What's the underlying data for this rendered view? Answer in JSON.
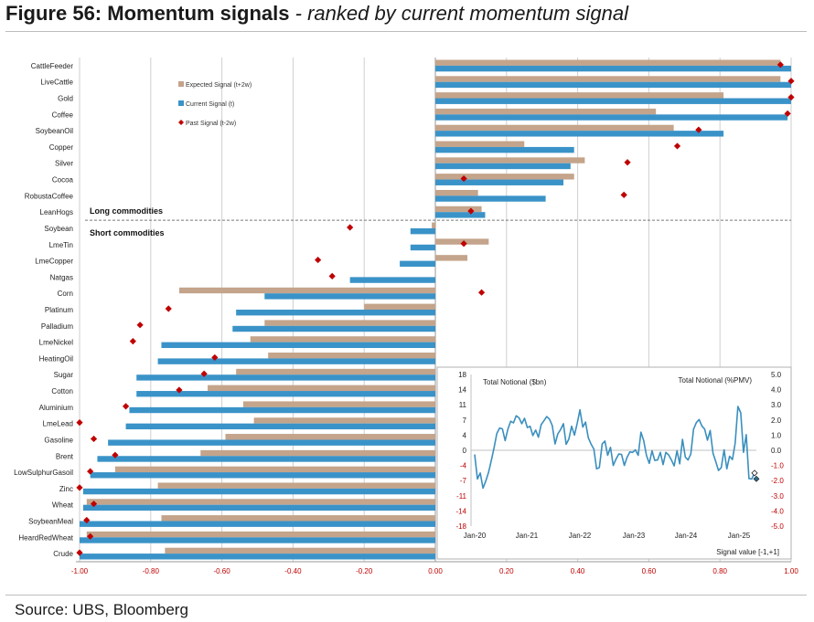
{
  "figure": {
    "number_label": "Figure 56: Momentum signals",
    "subtitle": "- ranked by current momentum signal",
    "source": "Source: UBS, Bloomberg"
  },
  "colors": {
    "expected": "#c4a48b",
    "current": "#3a93c8",
    "past": "#c00000",
    "grid": "#cfcfcf",
    "axis_red": "#c00000",
    "inset_line": "#3a8fbf"
  },
  "chart_data": [
    {
      "type": "bar",
      "orientation": "horizontal",
      "categories": [
        "CattleFeeder",
        "LiveCattle",
        "Gold",
        "Coffee",
        "SoybeanOil",
        "Copper",
        "Silver",
        "Cocoa",
        "RobustaCoffee",
        "LeanHogs",
        "Soybean",
        "LmeTin",
        "LmeCopper",
        "Natgas",
        "Corn",
        "Platinum",
        "Palladium",
        "LmeNickel",
        "HeatingOil",
        "Sugar",
        "Cotton",
        "Aluminium",
        "LmeLead",
        "Gasoline",
        "Brent",
        "LowSulphurGasoil",
        "Zinc",
        "Wheat",
        "SoybeanMeal",
        "HeardRedWheat",
        "Crude"
      ],
      "series": [
        {
          "name": "Expected Signal (t+2w)",
          "marker": "bar",
          "values": [
            0.97,
            0.97,
            0.81,
            0.62,
            0.67,
            0.25,
            0.42,
            0.39,
            0.12,
            0.13,
            -0.01,
            0.15,
            0.09,
            0,
            -0.72,
            -0.2,
            -0.48,
            -0.52,
            -0.47,
            -0.56,
            -0.64,
            -0.54,
            -0.51,
            -0.59,
            -0.66,
            -0.9,
            -0.78,
            -0.98,
            -0.77,
            -0.98,
            -0.76
          ]
        },
        {
          "name": "Current Signal (t)",
          "marker": "bar",
          "values": [
            1.0,
            1.0,
            1.0,
            0.99,
            0.81,
            0.39,
            0.38,
            0.36,
            0.31,
            0.14,
            -0.07,
            -0.07,
            -0.1,
            -0.24,
            -0.48,
            -0.56,
            -0.57,
            -0.77,
            -0.78,
            -0.84,
            -0.84,
            -0.86,
            -0.87,
            -0.92,
            -0.95,
            -0.97,
            -0.99,
            -0.99,
            -1.0,
            -1.0,
            -1.0
          ]
        },
        {
          "name": "Past Signal (t-2w)",
          "marker": "diamond",
          "values": [
            0.97,
            1.0,
            1.0,
            0.99,
            0.74,
            0.68,
            0.54,
            0.08,
            0.53,
            0.1,
            -0.24,
            0.08,
            -0.33,
            -0.29,
            0.13,
            -0.75,
            -0.83,
            -0.85,
            -0.62,
            -0.65,
            -0.72,
            -0.87,
            -1.0,
            -0.96,
            -0.9,
            -0.97,
            -1.0,
            -0.96,
            -0.98,
            -0.97,
            -1.0
          ]
        }
      ],
      "xlim": [
        -1.0,
        1.0
      ],
      "x_ticks": [
        "-1.00",
        "-0.80",
        "-0.60",
        "-0.40",
        "-0.20",
        "0.00",
        "0.20",
        "0.40",
        "0.60",
        "0.80",
        "1.00"
      ],
      "divider_after_index": 9,
      "group_labels": {
        "long": "Long commodities",
        "short": "Short commodities"
      },
      "legend_position": "top-left",
      "grid": true
    },
    {
      "type": "line",
      "left_label": "Total Notional ($bn)",
      "right_label": "Total Notional (%PMV)",
      "xlabel": "Signal value [-1,+1]",
      "x_ticks": [
        "Jan-20",
        "Jan-21",
        "Jan-22",
        "Jan-23",
        "Jan-24",
        "Jan-25"
      ],
      "y_left_ticks": [
        "18",
        "14",
        "11",
        "7",
        "4",
        "0",
        "-4",
        "-7",
        "-11",
        "-14",
        "-18"
      ],
      "y_right_ticks": [
        "5.0",
        "4.0",
        "3.0",
        "2.0",
        "1.0",
        "0.0",
        "-1.0",
        "-2.0",
        "-3.0",
        "-4.0",
        "-5.0"
      ],
      "ylim_left": [
        -18,
        18
      ],
      "ylim_right": [
        -5.0,
        5.0
      ],
      "series": [
        {
          "values": [
            -1.0,
            -6.8,
            -5.4,
            -9.0,
            -7.3,
            -5.3,
            -2.4,
            0.6,
            4.0,
            5.3,
            5.1,
            2.3,
            5.1,
            6.9,
            6.5,
            8.2,
            7.7,
            6.3,
            7.6,
            5.4,
            5.7,
            3.5,
            4.8,
            3.1,
            6.1,
            7.0,
            8.0,
            7.4,
            5.9,
            1.5,
            3.9,
            4.9,
            6.3,
            1.4,
            2.7,
            5.7,
            3.6,
            6.4,
            9.6,
            5.5,
            6.7,
            3.0,
            1.5,
            0.3,
            -4.4,
            -4.1,
            1.5,
            2.2,
            -1.2,
            0.7,
            -3.6,
            -2.1,
            -0.9,
            -1.0,
            -3.6,
            -1.7,
            -0.4,
            -0.5,
            0.1,
            -1.2,
            4.3,
            2.3,
            -1.2,
            -3.1,
            -0.1,
            -2.4,
            -2.3,
            -0.5,
            -3.4,
            -0.5,
            -1.1,
            -2.3,
            -3.7,
            -0.1,
            -3.2,
            2.6,
            -1.6,
            -2.3,
            -0.9,
            5.0,
            6.6,
            7.3,
            5.8,
            5.0,
            2.4,
            4.7,
            -0.7,
            -2.7,
            -4.8,
            -4.1,
            0.1,
            -4.4,
            -1.4,
            -2.2,
            1.7,
            10.4,
            8.9,
            -0.5,
            3.7,
            -6.7,
            -6.8,
            -5.3
          ]
        },
        {
          "values": [
            -6.8,
            -5.4
          ]
        }
      ]
    }
  ]
}
